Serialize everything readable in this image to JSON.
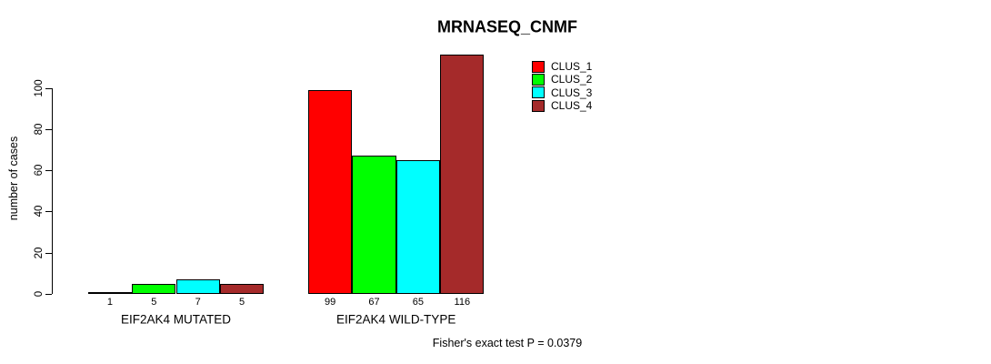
{
  "chart_data": {
    "type": "bar",
    "title": "MRNASEQ_CNMF",
    "ylabel": "number of cases",
    "xlabel": "",
    "ylim": [
      0,
      120
    ],
    "yticks": [
      0,
      20,
      40,
      60,
      80,
      100
    ],
    "grid": false,
    "legend_position": "upper-right-inside",
    "categories": [
      "EIF2AK4 MUTATED",
      "EIF2AK4 WILD-TYPE"
    ],
    "series": [
      {
        "name": "CLUS_1",
        "color": "#FF0000",
        "values": [
          1,
          99
        ]
      },
      {
        "name": "CLUS_2",
        "color": "#00FF00",
        "values": [
          5,
          67
        ]
      },
      {
        "name": "CLUS_3",
        "color": "#00FFFF",
        "values": [
          7,
          65
        ]
      },
      {
        "name": "CLUS_4",
        "color": "#A52A2A",
        "values": [
          5,
          116
        ]
      }
    ],
    "footnote": "Fisher's exact test P = 0.0379"
  },
  "colors": {
    "background": "#FFFFFF",
    "axis": "#000000",
    "text": "#000000"
  }
}
